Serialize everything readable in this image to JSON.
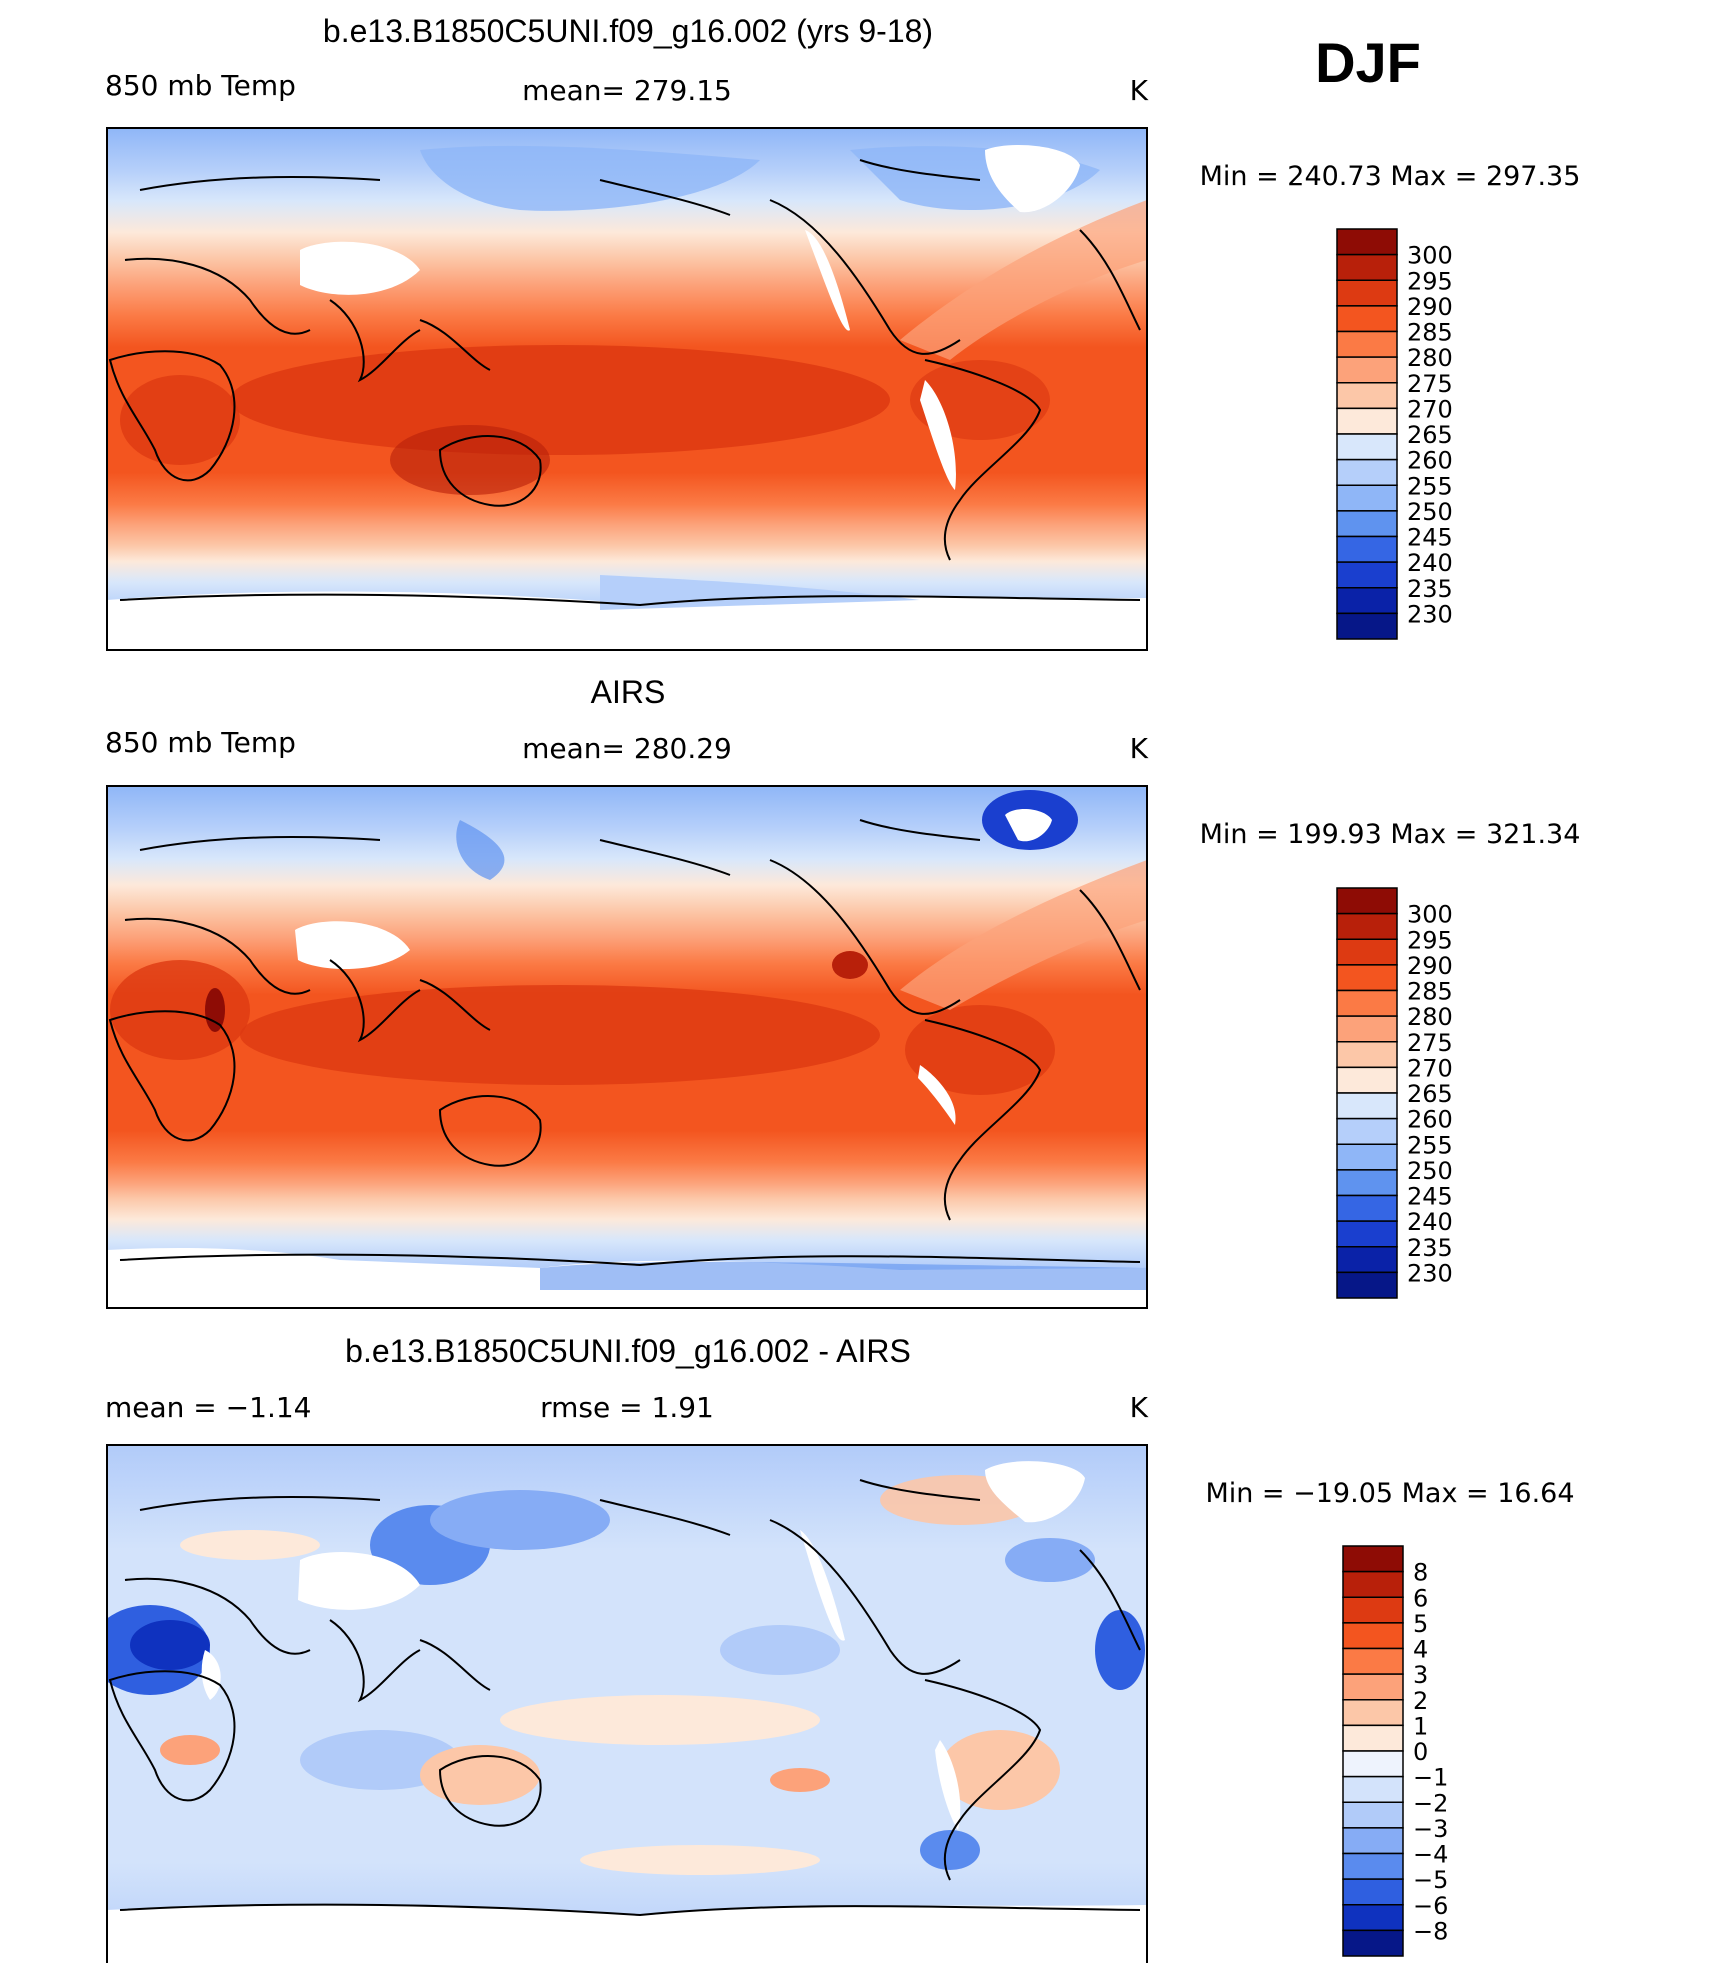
{
  "figure": {
    "season": "DJF",
    "units": "K"
  },
  "chart_data": [
    {
      "type": "heatmap",
      "title": "b.e13.B1850C5UNI.f09_g16.002 (yrs 9-18)",
      "left_label": "850 mb Temp",
      "center_label": "mean=  279.15",
      "right_label": "K",
      "minmax_label": "Min  =  240.73  Max  =  297.35",
      "stats": {
        "mean": 279.15,
        "min": 240.73,
        "max": 297.35
      },
      "colorbar": {
        "levels": [
          "300",
          "295",
          "290",
          "285",
          "280",
          "275",
          "270",
          "265",
          "260",
          "255",
          "250",
          "245",
          "240",
          "235",
          "230"
        ],
        "colors": [
          "#8e0c05",
          "#b8200a",
          "#dd3a12",
          "#f3551f",
          "#fb7a45",
          "#fca27a",
          "#fcc7a8",
          "#fde9da",
          "#d8e7fb",
          "#b5cffa",
          "#8fb6f7",
          "#5f93ef",
          "#3566e4",
          "#1a3fcf",
          "#0a22a8",
          "#061788"
        ]
      }
    },
    {
      "type": "heatmap",
      "title": "AIRS",
      "left_label": "850 mb Temp",
      "center_label": "mean=  280.29",
      "right_label": "K",
      "minmax_label": "Min  =  199.93  Max  =  321.34",
      "stats": {
        "mean": 280.29,
        "min": 199.93,
        "max": 321.34
      },
      "colorbar": {
        "levels": [
          "300",
          "295",
          "290",
          "285",
          "280",
          "275",
          "270",
          "265",
          "260",
          "255",
          "250",
          "245",
          "240",
          "235",
          "230"
        ],
        "colors": [
          "#8e0c05",
          "#b8200a",
          "#dd3a12",
          "#f3551f",
          "#fb7a45",
          "#fca27a",
          "#fcc7a8",
          "#fde9da",
          "#d8e7fb",
          "#b5cffa",
          "#8fb6f7",
          "#5f93ef",
          "#3566e4",
          "#1a3fcf",
          "#0a22a8",
          "#061788"
        ]
      }
    },
    {
      "type": "heatmap",
      "title": "b.e13.B1850C5UNI.f09_g16.002 - AIRS",
      "left_label": "mean  =    −1.14",
      "center_label": "rmse  =     1.91",
      "right_label": "K",
      "minmax_label": "Min  =  −19.05  Max  =    16.64",
      "stats": {
        "mean": -1.14,
        "rmse": 1.91,
        "min": -19.05,
        "max": 16.64
      },
      "colorbar": {
        "levels": [
          "8",
          "6",
          "5",
          "4",
          "3",
          "2",
          "1",
          "0",
          "−1",
          "−2",
          "−3",
          "−4",
          "−5",
          "−6",
          "−8"
        ],
        "colors": [
          "#8e0c05",
          "#b8200a",
          "#dd3a12",
          "#f3551f",
          "#fb7a45",
          "#fca27a",
          "#fcc7a8",
          "#fde9da",
          "#eef3fd",
          "#d3e3fb",
          "#b1cbf9",
          "#86acf5",
          "#5a8bee",
          "#2f5fe0",
          "#0f32bf",
          "#061788"
        ]
      }
    }
  ]
}
